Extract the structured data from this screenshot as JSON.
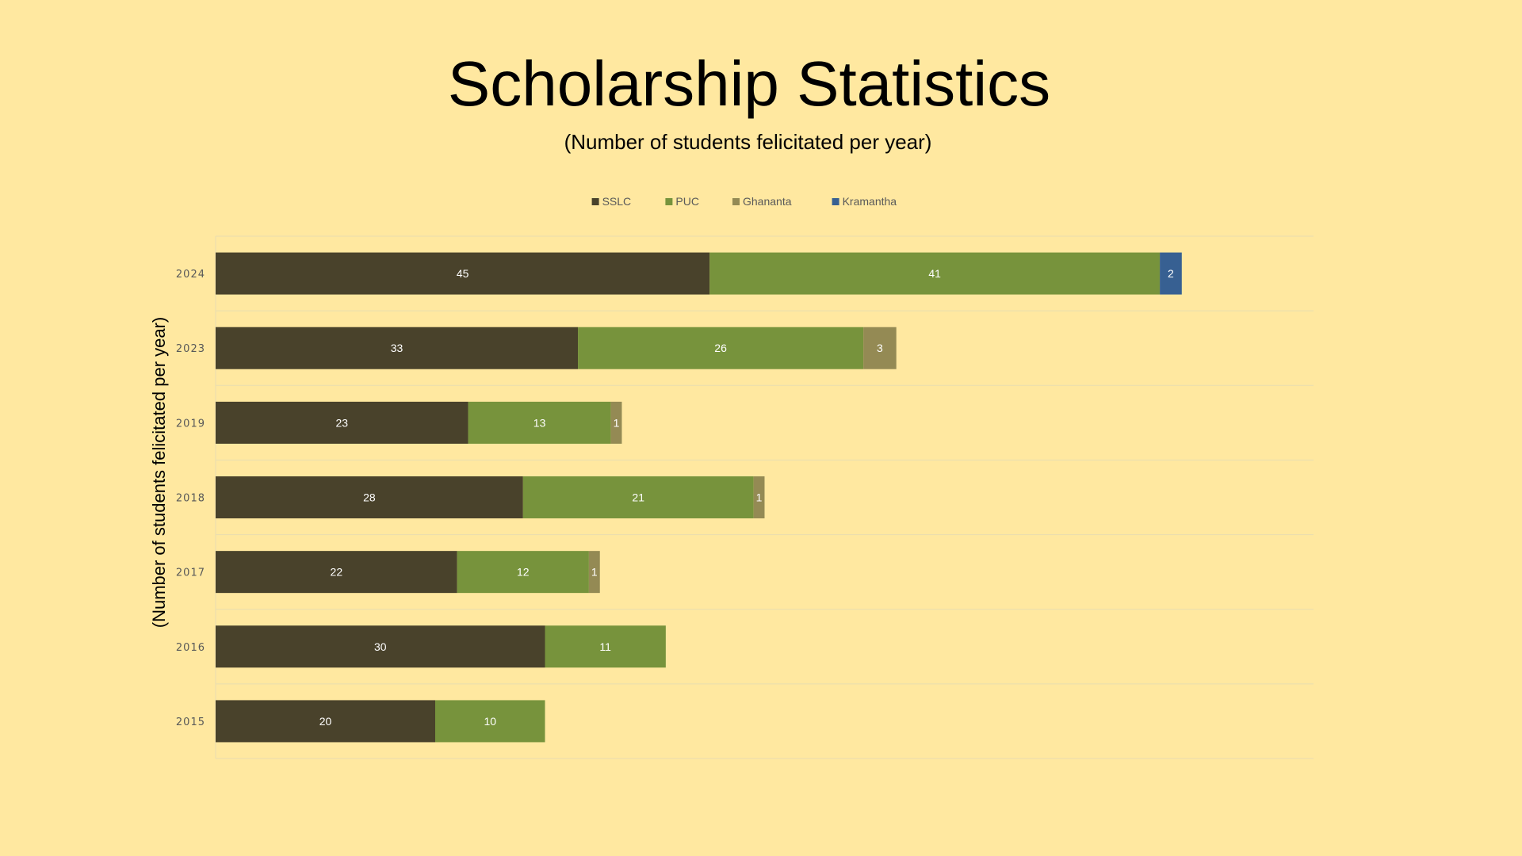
{
  "slide": {
    "title": "Scholarship Statistics",
    "subtitle": "(Number of students felicitated per year)"
  },
  "colors": {
    "background": "#FFE8A0",
    "gridline": "#E8DDB0"
  },
  "chart_data": {
    "type": "bar",
    "orientation": "horizontal",
    "stacked": true,
    "categories": [
      "2024",
      "2023",
      "2019",
      "2018",
      "2017",
      "2016",
      "2015"
    ],
    "series": [
      {
        "name": "SSLC",
        "color": "#49422B",
        "values": [
          45,
          33,
          23,
          28,
          22,
          30,
          20
        ]
      },
      {
        "name": "PUC",
        "color": "#77933C",
        "values": [
          41,
          26,
          13,
          21,
          12,
          11,
          10
        ]
      },
      {
        "name": "Ghananta",
        "color": "#948A54",
        "values": [
          null,
          3,
          1,
          1,
          1,
          null,
          null
        ]
      },
      {
        "name": "Kramantha",
        "color": "#376092",
        "values": [
          2,
          null,
          null,
          null,
          null,
          null,
          null
        ]
      }
    ],
    "ylabel": "(Number of students felicitated per year)",
    "xlim": [
      0,
      100
    ],
    "legend_position": "top",
    "grid": true,
    "data_labels": true
  }
}
